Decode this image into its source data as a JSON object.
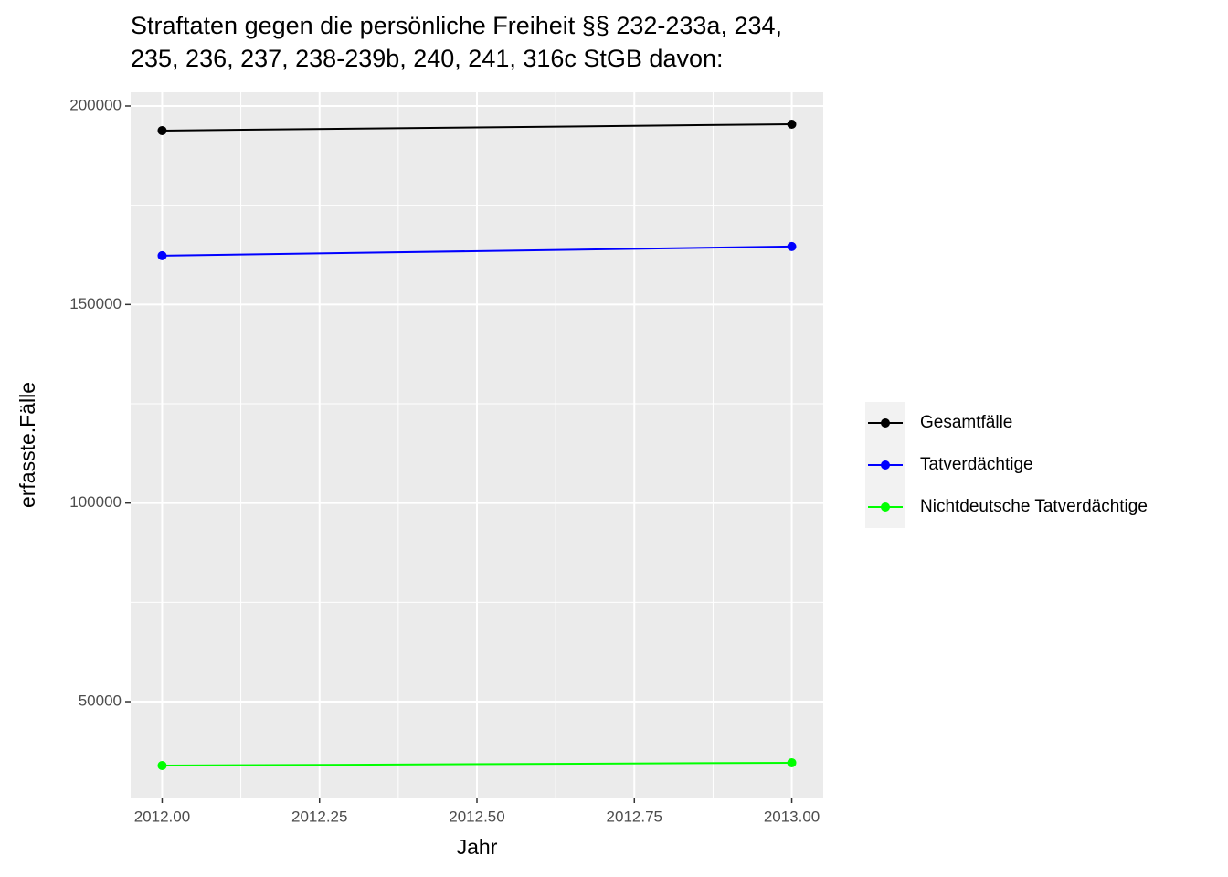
{
  "chart_data": {
    "type": "line",
    "title": [
      "Straftaten gegen die persönliche Freiheit §§ 232-233a, 234,",
      "235, 236, 237, 238-239b, 240, 241, 316c StGB davon:"
    ],
    "x_label": "Jahr",
    "y_label": "erfasste.Fälle",
    "x": [
      2012,
      2013
    ],
    "series": [
      {
        "name": "Gesamtfälle",
        "color": "#000000",
        "values": [
          193800,
          195400
        ]
      },
      {
        "name": "Tatverdächtige",
        "color": "#0000ff",
        "values": [
          162300,
          164600
        ]
      },
      {
        "name": "Nichtdeutsche Tatverdächtige",
        "color": "#00ff00",
        "values": [
          33900,
          34600
        ]
      }
    ],
    "xlim": [
      2011.95,
      2013.05
    ],
    "xticks": [
      {
        "value": 2012,
        "label": "2012.00"
      },
      {
        "value": 2012.25,
        "label": "2012.25"
      },
      {
        "value": 2012.5,
        "label": "2012.50"
      },
      {
        "value": 2012.75,
        "label": "2012.75"
      },
      {
        "value": 2013,
        "label": "2013.00"
      }
    ],
    "ylim": [
      25850,
      203450
    ],
    "yticks": [
      50000,
      100000,
      150000,
      200000
    ],
    "grid": true,
    "legend": "right"
  }
}
